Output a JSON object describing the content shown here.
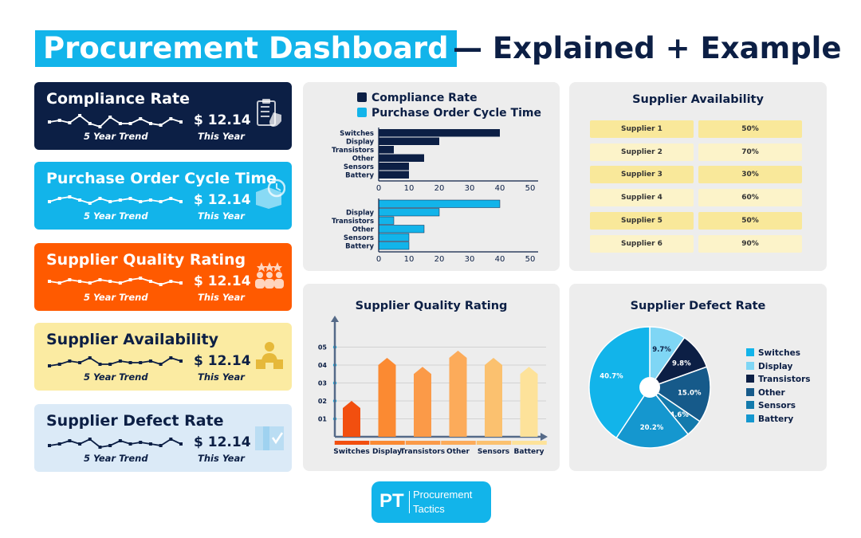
{
  "header": {
    "title_highlight": "Procurement Dashboard",
    "title_rest": "— Explained + Example"
  },
  "kpis": [
    {
      "title": "Compliance Rate",
      "value": "$ 12.14",
      "trend_label": "5 Year Trend",
      "period_label": "This Year",
      "icon": "compliance-clipboard-icon",
      "bg": "#0c1f45",
      "fg": "#ffffff",
      "trend": [
        22,
        24,
        21,
        30,
        20,
        16,
        28,
        20,
        20,
        26,
        20,
        18,
        26,
        22
      ]
    },
    {
      "title": "Purchase Order Cycle Time",
      "value": "$ 12.14",
      "trend_label": "5 Year Trend",
      "period_label": "This Year",
      "icon": "box-clock-icon",
      "bg": "#12b4ea",
      "fg": "#ffffff",
      "trend": [
        22,
        26,
        28,
        24,
        20,
        26,
        22,
        24,
        26,
        22,
        24,
        22,
        26,
        22
      ]
    },
    {
      "title": "Supplier Quality Rating",
      "value": "$ 12.14",
      "trend_label": "5 Year Trend",
      "period_label": "This Year",
      "icon": "team-rating-icon",
      "bg": "#ff5a00",
      "fg": "#ffffff",
      "trend": [
        24,
        22,
        26,
        24,
        22,
        26,
        24,
        22,
        26,
        28,
        24,
        20,
        24,
        22
      ]
    },
    {
      "title": "Supplier Availability",
      "value": "$ 12.14",
      "trend_label": "5 Year Trend",
      "period_label": "This Year",
      "icon": "supplier-person-icon",
      "bg": "#fbeba2",
      "fg": "#0c1f45",
      "trend": [
        18,
        20,
        24,
        22,
        28,
        20,
        20,
        24,
        22,
        22,
        24,
        20,
        28,
        24
      ]
    },
    {
      "title": "Supplier Defect Rate",
      "value": "$ 12.14",
      "trend_label": "5 Year Trend",
      "period_label": "This Year",
      "icon": "package-box-icon",
      "bg": "#dbeaf7",
      "fg": "#0c1f45",
      "trend": [
        20,
        22,
        26,
        22,
        28,
        18,
        20,
        26,
        22,
        24,
        22,
        20,
        28,
        22
      ]
    }
  ],
  "colors": {
    "navy": "#0c1f45",
    "cyan": "#12b4ea",
    "orange": "#ff5a00",
    "yellow": "#fbeba2",
    "lightblue": "#dbeaf7"
  },
  "chart_data": [
    {
      "type": "bar",
      "orientation": "horizontal",
      "legend": [
        "Compliance Rate",
        "Purchase Order Cycle Time"
      ],
      "panels": [
        {
          "series": "Compliance Rate",
          "color": "#0c1f45",
          "categories": [
            "Switches",
            "Display",
            "Transistors",
            "Other",
            "Sensors",
            "Battery"
          ],
          "values": [
            40,
            20,
            5,
            15,
            10,
            10
          ]
        },
        {
          "series": "Purchase Order Cycle Time",
          "color": "#12b4ea",
          "categories": [
            "",
            "Display",
            "Transistors",
            "Other",
            "Sensors",
            "Battery"
          ],
          "values": [
            40,
            20,
            5,
            15,
            10,
            10
          ]
        }
      ],
      "xticks": [
        "0",
        "10",
        "20",
        "30",
        "40",
        "50"
      ],
      "xlim": [
        0,
        50
      ]
    },
    {
      "type": "bar",
      "title": "Supplier Quality Rating",
      "categories": [
        "Switches",
        "Display",
        "Transistors",
        "Other",
        "Sensors",
        "Battery"
      ],
      "values": [
        2.0,
        4.4,
        3.9,
        4.8,
        4.4,
        3.9
      ],
      "colors": [
        "#f24f0f",
        "#fb8a32",
        "#fb9a48",
        "#fcab5a",
        "#fbc16f",
        "#fde29a"
      ],
      "yticks": [
        "01",
        "02",
        "03",
        "04",
        "05"
      ],
      "ylim": [
        0,
        5.5
      ]
    },
    {
      "type": "pie",
      "title": "Supplier Defect Rate",
      "labels": [
        "Switches",
        "Display",
        "Transistors",
        "Other",
        "Sensors",
        "Battery"
      ],
      "values": [
        40.7,
        9.7,
        9.8,
        15.0,
        4.6,
        20.2
      ],
      "value_labels": [
        "40.7%",
        "9.7%",
        "9.8%",
        "15.0%",
        "4.6%",
        "20.2%"
      ],
      "slices_clockwise_from_top": [
        {
          "label": "Display",
          "value": 9.7,
          "text": "9.7%"
        },
        {
          "label": "Transistors",
          "value": 9.8,
          "text": "9.8%"
        },
        {
          "label": "Other",
          "value": 15.0,
          "text": "15.0%"
        },
        {
          "label": "Sensors",
          "value": 4.6,
          "text": "4.6%"
        },
        {
          "label": "Battery",
          "value": 20.2,
          "text": "20.2%"
        },
        {
          "label": "Switches",
          "value": 40.7,
          "text": "40.7%"
        }
      ],
      "colors": {
        "Switches": "#12b4ea",
        "Display": "#7fd6f5",
        "Transistors": "#0c1f45",
        "Other": "#165a8a",
        "Sensors": "#137aac",
        "Battery": "#1597cf"
      }
    }
  ],
  "availability": {
    "title": "Supplier Availability",
    "rows": [
      {
        "supplier": "Supplier 1",
        "value": "50%"
      },
      {
        "supplier": "Supplier 2",
        "value": "70%"
      },
      {
        "supplier": "Supplier 3",
        "value": "30%"
      },
      {
        "supplier": "Supplier 4",
        "value": "60%"
      },
      {
        "supplier": "Supplier 5",
        "value": "50%"
      },
      {
        "supplier": "Supplier 6",
        "value": "90%"
      }
    ],
    "row_colors": [
      "#f9e89a",
      "#fcf3c9"
    ]
  },
  "footer": {
    "logo_mark": "PT",
    "logo_line1": "Procurement",
    "logo_line2": "Tactics"
  }
}
